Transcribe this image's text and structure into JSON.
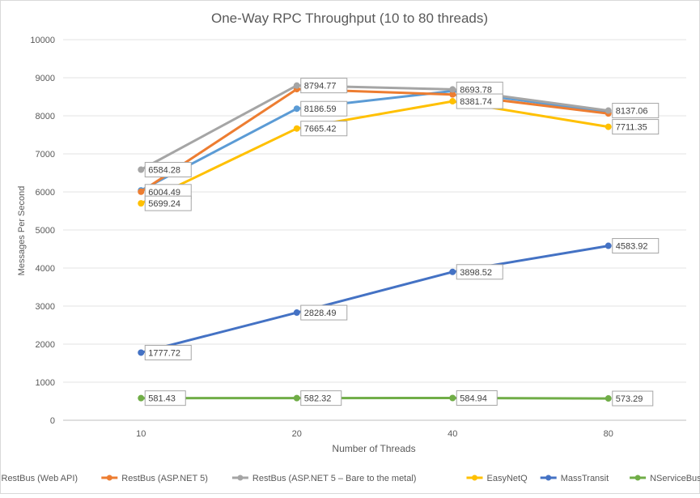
{
  "chart_data": {
    "type": "line",
    "title": "One-Way RPC Throughput (10 to 80 threads)",
    "xlabel": "Number  of Threads",
    "ylabel": "Messages Per Second",
    "categories": [
      "10",
      "20",
      "40",
      "80"
    ],
    "ylim": [
      0,
      10000
    ],
    "yticks": [
      0,
      1000,
      2000,
      3000,
      4000,
      5000,
      6000,
      7000,
      8000,
      9000,
      10000
    ],
    "grid": true,
    "legend_position": "bottom",
    "series": [
      {
        "name": "RestBus (Web API)",
        "color": "#5B9BD5",
        "values": [
          6040,
          8186.59,
          8650,
          8095
        ],
        "labels": [
          null,
          "8186.59",
          null,
          null
        ]
      },
      {
        "name": "RestBus (ASP.NET 5)",
        "color": "#ED7D31",
        "values": [
          6004.49,
          8700,
          8560,
          8060
        ],
        "labels": [
          "6004.49",
          null,
          null,
          null
        ]
      },
      {
        "name": "RestBus (ASP.NET 5 – Bare to the metal)",
        "color": "#A5A5A5",
        "values": [
          6584.28,
          8794.77,
          8693.78,
          8137.06
        ],
        "labels": [
          "6584.28",
          "8794.77",
          "8693.78",
          "8137.06"
        ]
      },
      {
        "name": "EasyNetQ",
        "color": "#FFC000",
        "values": [
          5699.24,
          7665.42,
          8381.74,
          7711.35
        ],
        "labels": [
          "5699.24",
          "7665.42",
          "8381.74",
          "7711.35"
        ]
      },
      {
        "name": "MassTransit",
        "color": "#4472C4",
        "values": [
          1777.72,
          2828.49,
          3898.52,
          4583.92
        ],
        "labels": [
          "1777.72",
          "2828.49",
          "3898.52",
          "4583.92"
        ]
      },
      {
        "name": "NServiceBus",
        "color": "#70AD47",
        "values": [
          581.43,
          582.32,
          584.94,
          573.29
        ],
        "labels": [
          "581.43",
          "582.32",
          "584.94",
          "573.29"
        ]
      }
    ]
  }
}
